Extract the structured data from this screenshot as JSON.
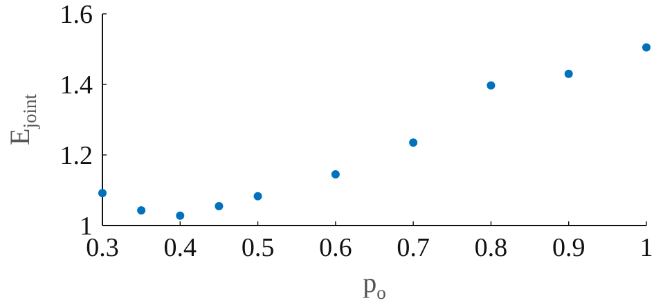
{
  "chart_data": {
    "type": "scatter",
    "title": "",
    "xlabel": {
      "main": "p",
      "sub": "o"
    },
    "ylabel": {
      "main": "E",
      "sub": "joint"
    },
    "xlim": [
      0.3,
      1.0
    ],
    "ylim": [
      1.0,
      1.6
    ],
    "xticks": [
      0.3,
      0.4,
      0.5,
      0.6,
      0.7,
      0.8,
      0.9,
      1.0
    ],
    "xtick_labels": [
      "0.3",
      "0.4",
      "0.5",
      "0.6",
      "0.7",
      "0.8",
      "0.9",
      "1"
    ],
    "yticks": [
      1.0,
      1.2,
      1.4,
      1.6
    ],
    "ytick_labels": [
      "1",
      "1.2",
      "1.4",
      "1.6"
    ],
    "grid": false,
    "legend": "none",
    "marker_color": "#0072BD",
    "series": [
      {
        "x": [
          0.3,
          0.35,
          0.4,
          0.45,
          0.5,
          0.6,
          0.7,
          0.8,
          0.9,
          1.0
        ],
        "y": [
          1.092,
          1.043,
          1.028,
          1.055,
          1.083,
          1.145,
          1.235,
          1.397,
          1.43,
          1.505
        ]
      }
    ]
  }
}
